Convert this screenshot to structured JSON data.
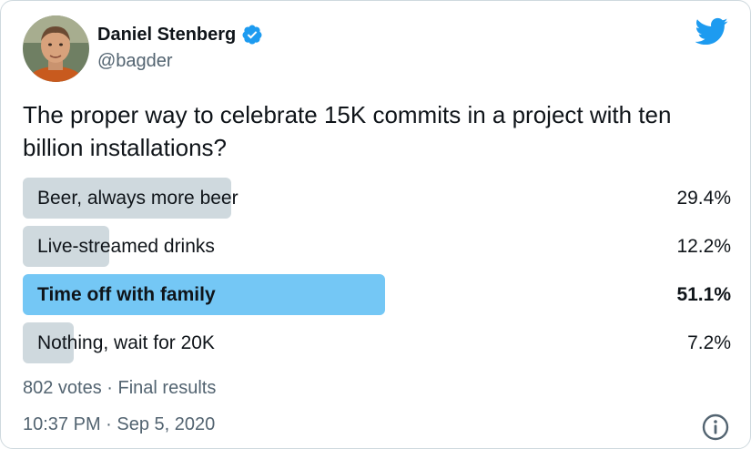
{
  "author": {
    "name": "Daniel Stenberg",
    "handle": "@bagder",
    "verified": true
  },
  "tweet": {
    "text": "The proper way to celebrate 15K commits in a project with ten billion installations?"
  },
  "poll": {
    "options": [
      {
        "label": "Beer, always more beer",
        "percent": "29.4%",
        "fraction": 0.294,
        "winner": false
      },
      {
        "label": "Live-streamed drinks",
        "percent": "12.2%",
        "fraction": 0.122,
        "winner": false
      },
      {
        "label": "Time off with family",
        "percent": "51.1%",
        "fraction": 0.511,
        "winner": true
      },
      {
        "label": "Nothing, wait for 20K",
        "percent": "7.2%",
        "fraction": 0.072,
        "winner": false
      }
    ],
    "summary": "802 votes · Final results"
  },
  "timestamp": "10:37 PM · Sep 5, 2020",
  "icons": {
    "brand": "twitter-bird-icon",
    "verified": "verified-badge-icon",
    "info": "info-icon"
  },
  "colors": {
    "brand": "#1d9bf0",
    "winner_bar": "#74c7f5",
    "bar": "#cfd9de",
    "text": "#0f1419",
    "secondary_text": "#536471"
  }
}
